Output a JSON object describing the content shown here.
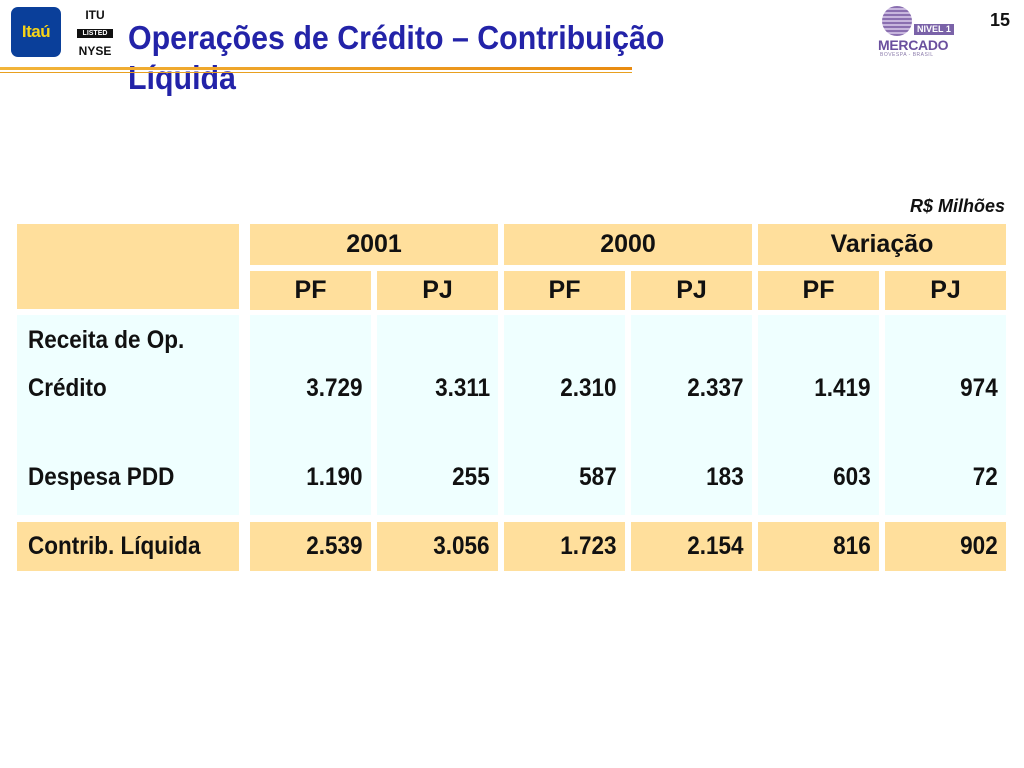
{
  "header": {
    "itau_logo": "Itaú",
    "nyse_logo": {
      "line1": "ITU",
      "line2": "LISTED",
      "line3": "NYSE"
    },
    "title": "Operações de Crédito – Contribuição Líquida",
    "novo_mercado_logo": {
      "top": "NIVEL 1",
      "main": "MERCADO",
      "sub": "BOVESPA - BRASIL"
    },
    "page_number": "15"
  },
  "unit": "R$ Milhões",
  "table": {
    "year_headers": [
      "2001",
      "2000",
      "Variação"
    ],
    "sub_headers": [
      "PF",
      "PJ",
      "PF",
      "PJ",
      "PF",
      "PJ"
    ],
    "rows": [
      {
        "label_line1": "Receita  de Op.",
        "label_line2": "Crédito",
        "values": [
          "3.729",
          "3.311",
          "2.310",
          "2.337",
          "1.419",
          "974"
        ]
      },
      {
        "label": "Despesa PDD",
        "values": [
          "1.190",
          "255",
          "587",
          "183",
          "603",
          "72"
        ]
      }
    ],
    "total": {
      "label": "Contrib. Líquida",
      "values": [
        "2.539",
        "3.056",
        "1.723",
        "2.154",
        "816",
        "902"
      ]
    }
  },
  "colors": {
    "title": "#2323a8",
    "header_fill": "#ffdf9c",
    "body_fill": "#efffff",
    "accent_rule": "#e98b10"
  }
}
